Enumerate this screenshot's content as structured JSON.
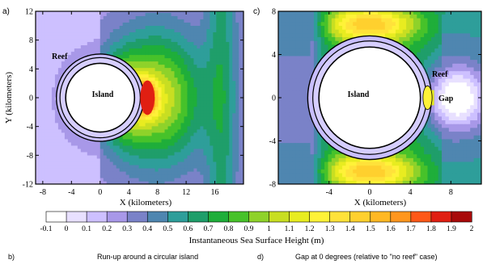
{
  "chart_data": [
    {
      "panel_letter": "a)",
      "type": "heatmap",
      "xlabel": "X (kilometers)",
      "ylabel": "Y (kilometers)",
      "xlim": [
        -9,
        20
      ],
      "ylim": [
        -12,
        12
      ],
      "x_ticks": [
        -8,
        -4,
        0,
        4,
        8,
        12,
        16
      ],
      "y_ticks": [
        -12,
        -8,
        -4,
        0,
        4,
        8,
        12
      ],
      "x_tick_labels": [
        "-8",
        "-4",
        "0",
        "4",
        "8",
        "12",
        "16"
      ],
      "y_tick_labels": [
        "-12",
        "-8",
        "-4",
        "0",
        "4",
        "8",
        "12"
      ],
      "annotations": [
        "Reef",
        "Island"
      ],
      "island": {
        "center": [
          0,
          0
        ],
        "radius_km": 4.8
      },
      "reef_ring": {
        "inner_radius_km": 5.6,
        "outer_radius_km": 6.1
      },
      "peak_value": 1.9,
      "peak_location": [
        6.5,
        0
      ]
    },
    {
      "panel_letter": "c)",
      "type": "heatmap",
      "xlabel": "X (kilometers)",
      "ylabel": "",
      "xlim": [
        -9,
        11
      ],
      "ylim": [
        -8,
        8
      ],
      "x_ticks": [
        -4,
        0,
        4,
        8
      ],
      "y_ticks": [
        -8,
        -4,
        0,
        4,
        8
      ],
      "x_tick_labels": [
        "-4",
        "0",
        "4",
        "8"
      ],
      "y_tick_labels": [
        "-8",
        "-4",
        "0",
        "4",
        "8"
      ],
      "annotations": [
        "Reef",
        "Gap",
        "Island"
      ],
      "island": {
        "center": [
          0,
          0
        ],
        "radius_km": 5.0
      },
      "reef_ring": {
        "inner_radius_km": 5.6,
        "outer_radius_km": 6.1
      },
      "gap_direction_degrees": 0
    }
  ],
  "colorbar": {
    "label": "Instantaneous Sea Surface Height (m)",
    "tick_labels": [
      "-0.1",
      "0",
      "0.1",
      "0.2",
      "0.3",
      "0.4",
      "0.5",
      "0.6",
      "0.7",
      "0.8",
      "0.9",
      "1",
      "1.1",
      "1.2",
      "1.3",
      "1.4",
      "1.5",
      "1.6",
      "1.7",
      "1.8",
      "1.9",
      "2"
    ],
    "colors": [
      "#ffffff",
      "#e8e0ff",
      "#cdc0ff",
      "#a898e8",
      "#7a82c8",
      "#4f86b0",
      "#2e9e9a",
      "#1f9e6a",
      "#1fae3a",
      "#47c22a",
      "#8fd22a",
      "#c8de22",
      "#e8ec20",
      "#fff238",
      "#ffe23a",
      "#ffd02e",
      "#ffb824",
      "#ff961e",
      "#ff5818",
      "#e01f12",
      "#a80a0a"
    ]
  },
  "captions": {
    "b": "b)",
    "b_text": "Run-up around a circular island",
    "d": "d)",
    "d_text": "Gap at 0 degrees (relative to \"no reef\" case)"
  }
}
